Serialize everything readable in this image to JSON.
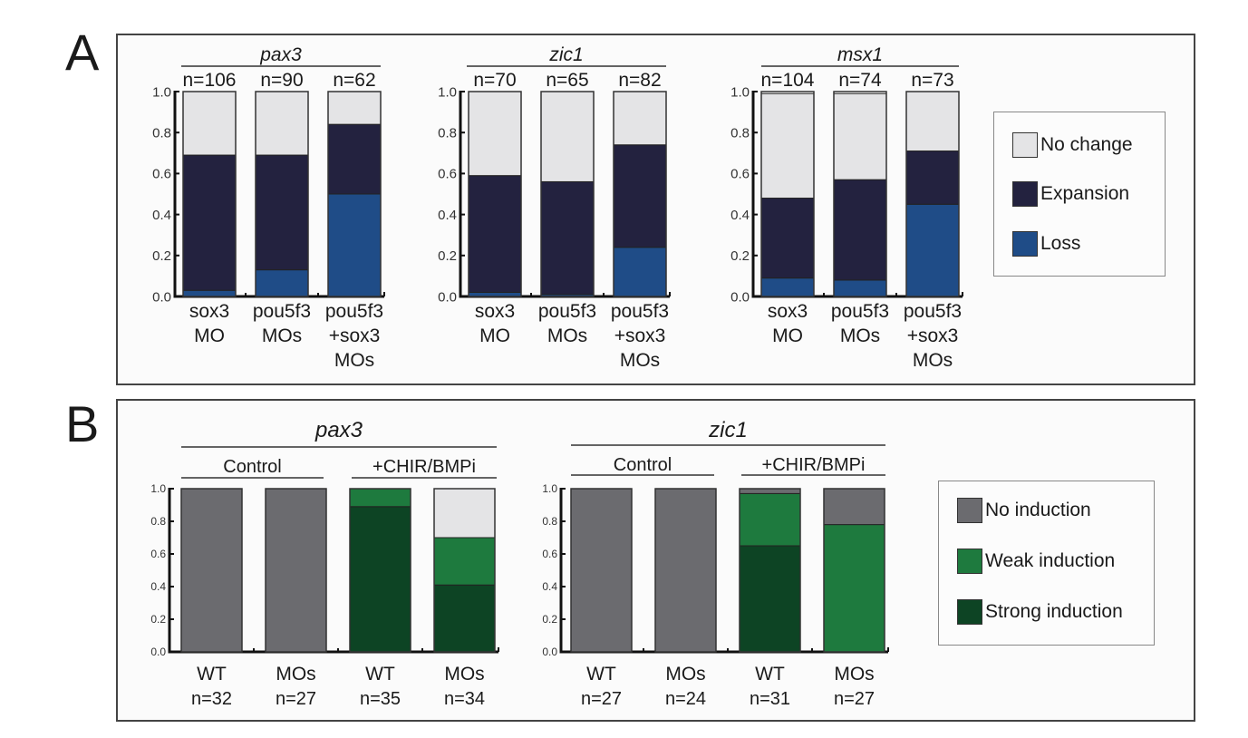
{
  "panels": {
    "a_label": "A",
    "b_label": "B"
  },
  "legend_a": {
    "items": [
      {
        "label": "No change",
        "color": "#e4e4e6"
      },
      {
        "label": "Expansion",
        "color": "#23223f"
      },
      {
        "label": "Loss",
        "color": "#1f4c87"
      }
    ]
  },
  "legend_b": {
    "items": [
      {
        "label": "No induction",
        "color": "#6b6b6f"
      },
      {
        "label": "Weak induction",
        "color": "#1e7a3e"
      },
      {
        "label": "Strong induction",
        "color": "#0d4424"
      }
    ]
  },
  "chart_data": [
    {
      "type": "bar",
      "stacked": true,
      "panel": "A",
      "title": "pax3",
      "categories": [
        "sox3\nMO",
        "pou5f3\nMOs",
        "pou5f3\n+sox3\nMOs"
      ],
      "n_labels": [
        "n=106",
        "n=90",
        "n=62"
      ],
      "series": [
        {
          "name": "Loss",
          "values": [
            0.03,
            0.13,
            0.5
          ]
        },
        {
          "name": "Expansion",
          "values": [
            0.66,
            0.56,
            0.34
          ]
        },
        {
          "name": "No change",
          "values": [
            0.31,
            0.31,
            0.16
          ]
        }
      ],
      "yticks": [
        "0.0",
        "0.2",
        "0.4",
        "0.6",
        "0.8",
        "1.0"
      ],
      "ylim": [
        0,
        1
      ]
    },
    {
      "type": "bar",
      "stacked": true,
      "panel": "A",
      "title": "zic1",
      "categories": [
        "sox3\nMO",
        "pou5f3\nMOs",
        "pou5f3\n+sox3\nMOs"
      ],
      "n_labels": [
        "n=70",
        "n=65",
        "n=82"
      ],
      "series": [
        {
          "name": "Loss",
          "values": [
            0.02,
            0.01,
            0.24
          ]
        },
        {
          "name": "Expansion",
          "values": [
            0.57,
            0.55,
            0.5
          ]
        },
        {
          "name": "No change",
          "values": [
            0.41,
            0.44,
            0.26
          ]
        }
      ],
      "yticks": [
        "0.0",
        "0.2",
        "0.4",
        "0.6",
        "0.8",
        "1.0"
      ],
      "ylim": [
        0,
        1
      ]
    },
    {
      "type": "bar",
      "stacked": true,
      "panel": "A",
      "title": "msx1",
      "categories": [
        "sox3\nMO",
        "pou5f3\nMOs",
        "pou5f3\n+sox3\nMOs"
      ],
      "n_labels": [
        "n=104",
        "n=74",
        "n=73"
      ],
      "series": [
        {
          "name": "Loss",
          "values": [
            0.09,
            0.08,
            0.45
          ]
        },
        {
          "name": "Expansion",
          "values": [
            0.39,
            0.49,
            0.26
          ]
        },
        {
          "name": "No change",
          "values": [
            0.51,
            0.42,
            0.29
          ]
        }
      ],
      "yticks": [
        "0.0",
        "0.2",
        "0.4",
        "0.6",
        "0.8",
        "1.0"
      ],
      "ylim": [
        0,
        1
      ]
    },
    {
      "type": "bar",
      "stacked": true,
      "panel": "B",
      "title": "pax3",
      "groups": [
        "Control",
        "+CHIR/BMPi"
      ],
      "categories": [
        "WT",
        "MOs",
        "WT",
        "MOs"
      ],
      "n_labels": [
        "n=32",
        "n=27",
        "n=35",
        "n=34"
      ],
      "series": [
        {
          "name": "Strong induction",
          "values": [
            0,
            0,
            0.89,
            0.41
          ]
        },
        {
          "name": "Weak induction",
          "values": [
            0,
            0,
            0.11,
            0.29
          ]
        },
        {
          "name": "No induction",
          "values": [
            1.0,
            1.0,
            0,
            0
          ]
        },
        {
          "name": "Unlabeled (light gray)",
          "values": [
            0,
            0,
            0,
            0.3
          ]
        }
      ],
      "yticks": [
        "0.0",
        "0.2",
        "0.4",
        "0.6",
        "0.8",
        "1.0"
      ],
      "ylim": [
        0,
        1
      ]
    },
    {
      "type": "bar",
      "stacked": true,
      "panel": "B",
      "title": "zic1",
      "groups": [
        "Control",
        "+CHIR/BMPi"
      ],
      "categories": [
        "WT",
        "MOs",
        "WT",
        "MOs"
      ],
      "n_labels": [
        "n=27",
        "n=24",
        "n=31",
        "n=27"
      ],
      "series": [
        {
          "name": "Strong induction",
          "values": [
            0,
            0,
            0.65,
            0
          ]
        },
        {
          "name": "Weak induction",
          "values": [
            0,
            0,
            0.32,
            0.78
          ]
        },
        {
          "name": "No induction",
          "values": [
            1.0,
            1.0,
            0.03,
            0.22
          ]
        }
      ],
      "yticks": [
        "0.0",
        "0.2",
        "0.4",
        "0.6",
        "0.8",
        "1.0"
      ],
      "ylim": [
        0,
        1
      ]
    }
  ],
  "series_colors": {
    "No change": "#e4e4e6",
    "Expansion": "#23223f",
    "Loss": "#1f4c87",
    "No induction": "#6b6b6f",
    "Weak induction": "#1e7a3e",
    "Strong induction": "#0d4424",
    "Unlabeled (light gray)": "#e4e4e6"
  }
}
